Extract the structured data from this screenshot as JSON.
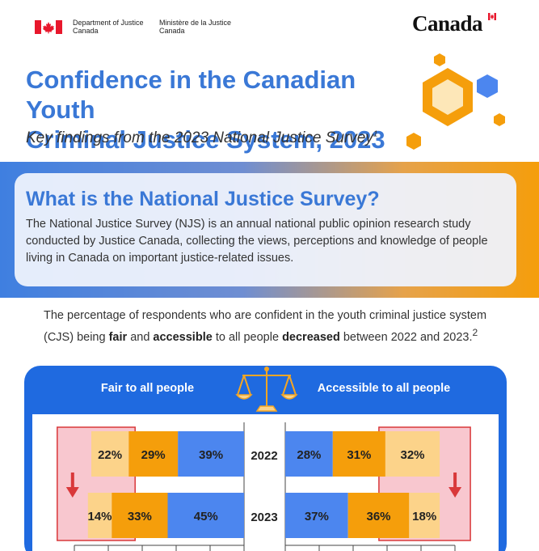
{
  "header": {
    "dept_en_line1": "Department of Justice",
    "dept_en_line2": "Canada",
    "dept_fr_line1": "Ministère de la Justice",
    "dept_fr_line2": "Canada",
    "wordmark": "Canada",
    "flag_icon": "canada-flag-icon",
    "flag_color": "#e8172c"
  },
  "title": {
    "line1": "Confidence in the Canadian Youth",
    "line2": "Criminal Justice System, 2023",
    "subtitle": "Key findings from the 2023 National Justice Survey",
    "subtitle_sup": "1"
  },
  "njs": {
    "heading": "What is the National Justice Survey?",
    "body": "The National Justice Survey (NJS) is an annual national public opinion research study conducted by Justice Canada, collecting the views, perceptions and knowledge of people living in Canada on important justice-related issues."
  },
  "intro": {
    "p1": "The percentage of respondents who are confident in the youth criminal justice system (CJS) being ",
    "b1": "fair",
    "p2": " and ",
    "b2": "accessible",
    "p3": " to all people ",
    "b3": "decreased",
    "p4": " between 2022 and 2023.",
    "sup": "2"
  },
  "panel": {
    "left_heading": "Fair to all people",
    "right_heading": "Accessible to all people",
    "scale_icon": "justice-scale-icon"
  },
  "colors": {
    "blue": "#4c86ef",
    "orange": "#f59e0b",
    "light_orange": "#fcd38a",
    "highlight": "#f8c7cf",
    "highlight_border": "#d9383a",
    "arrow": "#d9383a",
    "title_blue": "#3a78d6",
    "panel_blue": "#1f6ae0"
  },
  "chart_data": [
    {
      "type": "bar",
      "orientation": "horizontal-stacked",
      "direction": "right-to-left",
      "heading": "Fair to all people",
      "categories": [
        "2022",
        "2023"
      ],
      "series": [
        {
          "color": "#4c86ef",
          "values": [
            39,
            45
          ],
          "labels": [
            "39%",
            "45%"
          ]
        },
        {
          "color": "#f59e0b",
          "values": [
            29,
            33
          ],
          "labels": [
            "29%",
            "33%"
          ]
        },
        {
          "color": "#fcd38a",
          "values": [
            22,
            14
          ],
          "labels": [
            "22%",
            "14%"
          ]
        }
      ],
      "xlim": [
        0,
        100
      ]
    },
    {
      "type": "bar",
      "orientation": "horizontal-stacked",
      "direction": "left-to-right",
      "heading": "Accessible to all people",
      "categories": [
        "2022",
        "2023"
      ],
      "series": [
        {
          "color": "#4c86ef",
          "values": [
            28,
            37
          ],
          "labels": [
            "28%",
            "37%"
          ]
        },
        {
          "color": "#f59e0b",
          "values": [
            31,
            36
          ],
          "labels": [
            "31%",
            "36%"
          ]
        },
        {
          "color": "#fcd38a",
          "values": [
            32,
            18
          ],
          "labels": [
            "32%",
            "18%"
          ]
        }
      ],
      "xlim": [
        0,
        100
      ]
    }
  ]
}
